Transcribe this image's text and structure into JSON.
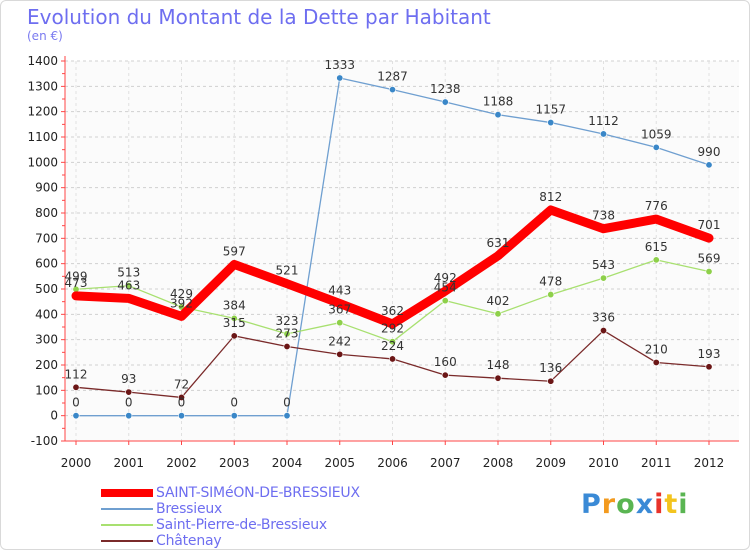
{
  "header": {
    "title": "Evolution du Montant de la Dette par Habitant",
    "subtitle": "(en €)"
  },
  "logo": {
    "text": "Proxiti",
    "colors": [
      "#3a8ad6",
      "#f39a1e",
      "#5ab552",
      "#3a8ad6",
      "#e8332a",
      "#f3c41e",
      "#5ab552"
    ]
  },
  "chart_data": {
    "type": "line",
    "title": "Evolution du Montant de la Dette par Habitant",
    "subtitle": "(en €)",
    "x": [
      "2000",
      "2001",
      "2002",
      "2003",
      "2004",
      "2005",
      "2006",
      "2007",
      "2008",
      "2009",
      "2010",
      "2011",
      "2012"
    ],
    "ylim": [
      -100,
      1400
    ],
    "yticks": [
      -100,
      0,
      100,
      200,
      300,
      400,
      500,
      600,
      700,
      800,
      900,
      1000,
      1100,
      1200,
      1300,
      1400
    ],
    "grid": "horizontal dashed",
    "legend_position": "bottom-left",
    "series": [
      {
        "name": "SAINT-SIMéON-DE-BRESSIEUX",
        "color": "#ff0000",
        "thick": true,
        "marker": false,
        "values": [
          473,
          463,
          392,
          597,
          521,
          443,
          362,
          492,
          631,
          812,
          738,
          776,
          701
        ]
      },
      {
        "name": "Bressieux",
        "color": "#6f9fd0",
        "thick": false,
        "marker": "#3a87c8",
        "values": [
          0,
          0,
          0,
          0,
          0,
          1333,
          1287,
          1238,
          1188,
          1157,
          1112,
          1059,
          990
        ]
      },
      {
        "name": "Saint-Pierre-de-Bressieux",
        "color": "#a8e070",
        "thick": false,
        "marker": "#8ed04a",
        "values": [
          499,
          513,
          429,
          384,
          323,
          367,
          292,
          454,
          402,
          478,
          543,
          615,
          569
        ]
      },
      {
        "name": "Châtenay",
        "color": "#7a2a2a",
        "thick": false,
        "marker": "#6b1616",
        "values": [
          112,
          93,
          72,
          315,
          273,
          242,
          224,
          160,
          148,
          136,
          336,
          210,
          193
        ]
      }
    ]
  }
}
